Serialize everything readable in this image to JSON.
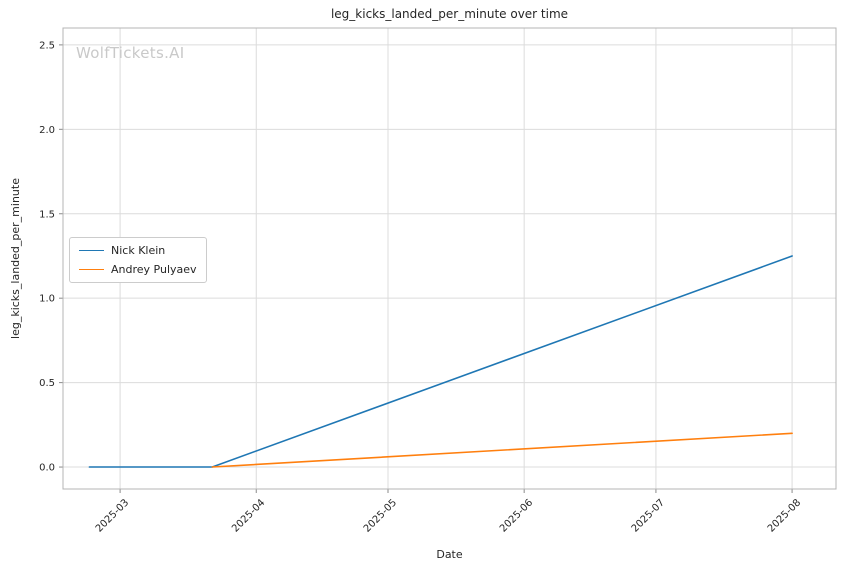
{
  "watermark": "WolfTickets.AI",
  "style": {
    "background": "#ffffff",
    "grid_color": "#dcdcdc",
    "spine_color": "#b4b4b4",
    "tick_color": "#8a8a8a",
    "text_color": "#262626",
    "watermark_color": "#c9c9c9"
  },
  "chart_data": {
    "type": "line",
    "title": "leg_kicks_landed_per_minute over time",
    "xlabel": "Date",
    "ylabel": "leg_kicks_landed_per_minute",
    "grid": true,
    "legend_position": "center-left",
    "x_ticks": [
      "2025-03",
      "2025-04",
      "2025-05",
      "2025-06",
      "2025-07",
      "2025-08"
    ],
    "y_ticks": [
      "0.0",
      "0.5",
      "1.0",
      "1.5",
      "2.0",
      "2.5"
    ],
    "xlim": [
      "2025-02-16",
      "2025-08-11"
    ],
    "ylim": [
      -0.13,
      2.6
    ],
    "series": [
      {
        "name": "Nick Klein",
        "color": "#1f77b4",
        "points": [
          [
            "2025-02-22",
            0.0
          ],
          [
            "2025-03-22",
            0.0
          ],
          [
            "2025-08-01",
            1.25
          ]
        ]
      },
      {
        "name": "Andrey Pulyaev",
        "color": "#ff7f0e",
        "points": [
          [
            "2025-03-22",
            0.0
          ],
          [
            "2025-08-01",
            0.2
          ]
        ]
      }
    ]
  }
}
